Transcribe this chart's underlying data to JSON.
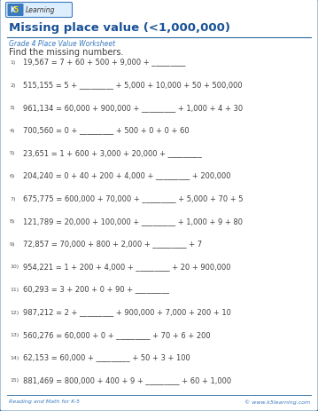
{
  "title": "Missing place value (<1,000,000)",
  "subtitle": "Grade 4 Place Value Worksheet",
  "instruction": "Find the missing numbers.",
  "footer_left": "Reading and Math for K-5",
  "footer_right": "© www.k5learning.com",
  "problems": [
    {
      "num": "1)",
      "text": "19,567 = 7 + 60 + 500 + 9,000 + _________"
    },
    {
      "num": "2)",
      "text": "515,155 = 5 + _________ + 5,000 + 10,000 + 50 + 500,000"
    },
    {
      "num": "3)",
      "text": "961,134 = 60,000 + 900,000 + _________ + 1,000 + 4 + 30"
    },
    {
      "num": "4)",
      "text": "700,560 = 0 + _________ + 500 + 0 + 0 + 60"
    },
    {
      "num": "5)",
      "text": "23,651 = 1 + 600 + 3,000 + 20,000 + _________"
    },
    {
      "num": "6)",
      "text": "204,240 = 0 + 40 + 200 + 4,000 + _________ + 200,000"
    },
    {
      "num": "7)",
      "text": "675,775 = 600,000 + 70,000 + _________ + 5,000 + 70 + 5"
    },
    {
      "num": "8)",
      "text": "121,789 = 20,000 + 100,000 + _________ + 1,000 + 9 + 80"
    },
    {
      "num": "9)",
      "text": "72,857 = 70,000 + 800 + 2,000 + _________ + 7"
    },
    {
      "num": "10)",
      "text": "954,221 = 1 + 200 + 4,000 + _________ + 20 + 900,000"
    },
    {
      "num": "11)",
      "text": "60,293 = 3 + 200 + 0 + 90 + _________"
    },
    {
      "num": "12)",
      "text": "987,212 = 2 + _________ + 900,000 + 7,000 + 200 + 10"
    },
    {
      "num": "13)",
      "text": "560,276 = 60,000 + 0 + _________ + 70 + 6 + 200"
    },
    {
      "num": "14)",
      "text": "62,153 = 60,000 + _________ + 50 + 3 + 100"
    },
    {
      "num": "15)",
      "text": "881,469 = 800,000 + 400 + 9 + _________ + 60 + 1,000"
    }
  ],
  "bg_color": "#ffffff",
  "border_color": "#2e6da4",
  "title_color": "#1a5296",
  "subtitle_color": "#3a7abf",
  "text_color": "#404040",
  "footer_color": "#3a7abf",
  "num_color": "#555555",
  "logo_border_color": "#3a7abf",
  "logo_k_color": "#cc2200",
  "logo_5_color": "#dd6600",
  "logo_learning_color": "#333333"
}
